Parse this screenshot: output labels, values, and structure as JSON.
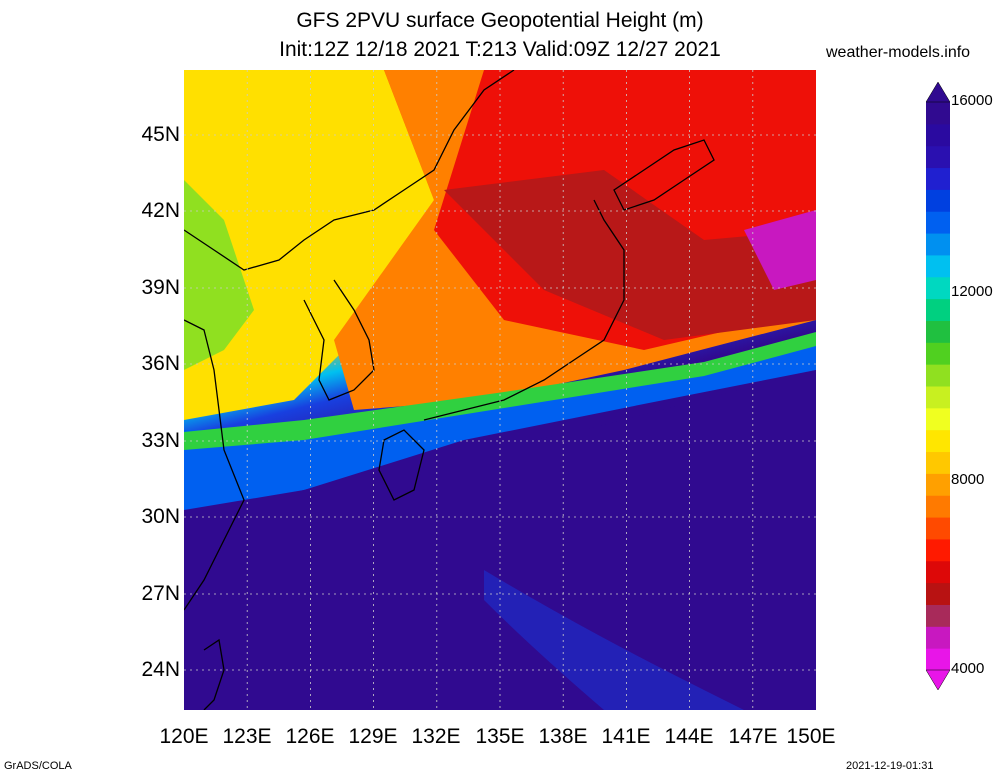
{
  "title": {
    "line1": "GFS 2PVU surface Geopotential Height (m)",
    "line2": "Init:12Z 12/18 2021 T:213 Valid:09Z 12/27 2021"
  },
  "site": "weather-models.info",
  "lat_labels": [
    "45N",
    "42N",
    "39N",
    "36N",
    "33N",
    "30N",
    "27N",
    "24N"
  ],
  "lon_labels": [
    "120E",
    "123E",
    "126E",
    "129E",
    "132E",
    "135E",
    "138E",
    "141E",
    "144E",
    "147E",
    "150E"
  ],
  "colorbar": {
    "labels": [
      "16000",
      "12000",
      "8000",
      "4000"
    ],
    "colors": [
      "#e815e8",
      "#c818c0",
      "#a82a5a",
      "#b81212",
      "#dd0808",
      "#ff1a00",
      "#ff4a00",
      "#ff7a00",
      "#ffa000",
      "#ffc800",
      "#ffe600",
      "#f0ff20",
      "#c8f020",
      "#90e020",
      "#50d020",
      "#20c040",
      "#00d080",
      "#00d8c0",
      "#00c0f0",
      "#0090f0",
      "#0060f0",
      "#0040e0",
      "#2020d0",
      "#2a10b0",
      "#2a0aa0",
      "#300a90"
    ]
  },
  "footer": {
    "left": "GrADS/COLA",
    "right": "2021-12-19-01:31"
  }
}
